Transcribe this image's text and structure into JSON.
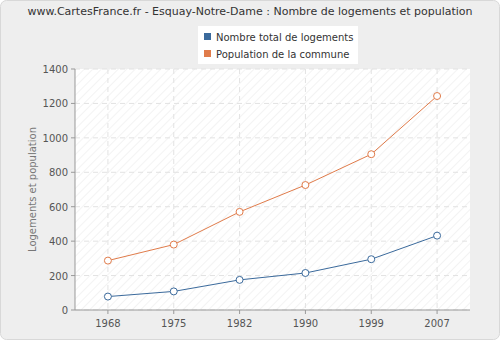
{
  "chart_data": {
    "type": "line",
    "title": "www.CartesFrance.fr - Esquay-Notre-Dame : Nombre de logements et population",
    "y_label": "Logements et population",
    "categories": [
      "1968",
      "1975",
      "1982",
      "1990",
      "1999",
      "2007"
    ],
    "series": [
      {
        "name": "Nombre total de logements",
        "color": "#3b6a9c",
        "marker": "circle",
        "values": [
          78,
          108,
          175,
          215,
          295,
          432
        ]
      },
      {
        "name": "Population de la commune",
        "color": "#e07b4a",
        "marker": "circle",
        "values": [
          287,
          380,
          570,
          726,
          905,
          1243
        ]
      }
    ],
    "ylim": [
      0,
      1400
    ],
    "yticks": [
      0,
      200,
      400,
      600,
      800,
      1000,
      1200,
      1400
    ],
    "grid": true,
    "legend": "top"
  }
}
